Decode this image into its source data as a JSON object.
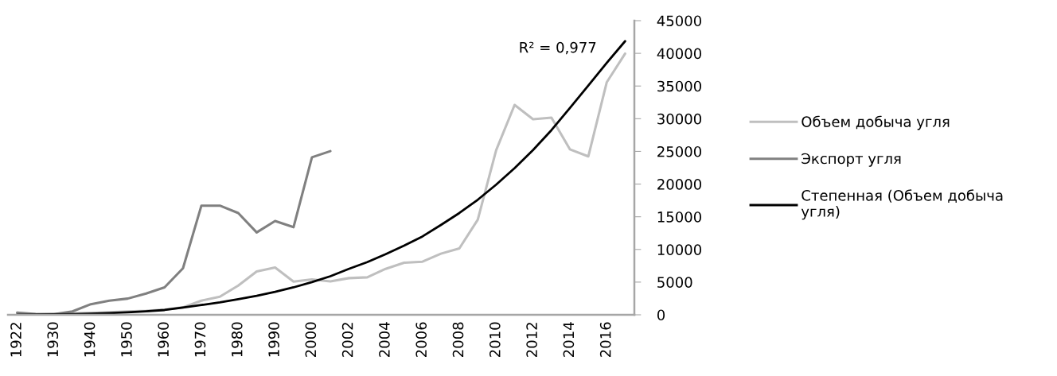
{
  "chart_data": {
    "type": "line",
    "categories": [
      "1922",
      null,
      "1930",
      null,
      "1940",
      null,
      "1950",
      null,
      "1960",
      null,
      "1970",
      null,
      "1980",
      null,
      "1990",
      null,
      "2000",
      null,
      "2002",
      null,
      "2004",
      null,
      "2006",
      null,
      "2008",
      null,
      "2010",
      null,
      "2012",
      null,
      "2014",
      null,
      "2016",
      null
    ],
    "series": [
      {
        "name": "Объем добыча угля",
        "color": "#bfbfbf",
        "values": [
          100,
          100,
          150,
          200,
          300,
          400,
          500,
          600,
          800,
          1140,
          2160,
          2760,
          4470,
          6620,
          7230,
          5080,
          5400,
          5120,
          5610,
          5730,
          7030,
          7970,
          8130,
          9350,
          10160,
          14550,
          25200,
          32110,
          29920,
          30160,
          25320,
          24230,
          35570,
          39960
        ]
      },
      {
        "name": "Экспорт угля",
        "color": "#808080",
        "values": [
          330,
          120,
          100,
          520,
          1620,
          2160,
          2480,
          3250,
          4190,
          7110,
          16700,
          16700,
          15570,
          12600,
          14350,
          13400,
          24100,
          25040,
          null,
          null,
          null,
          null,
          null,
          null,
          null,
          null,
          null,
          null,
          null,
          null,
          null,
          null,
          null,
          null
        ]
      },
      {
        "name": "Степенная (Объем добыча угля)",
        "color": "#000000",
        "values": [
          10,
          30,
          60,
          100,
          160,
          250,
          370,
          520,
          730,
          1100,
          1500,
          1900,
          2400,
          2900,
          3500,
          4200,
          5000,
          5900,
          7030,
          8050,
          9270,
          10570,
          11990,
          13740,
          15570,
          17600,
          19920,
          22440,
          25200,
          28250,
          31630,
          35080,
          38540,
          41870
        ]
      }
    ],
    "ylim": [
      0,
      45000
    ],
    "yticks": [
      0,
      5000,
      10000,
      15000,
      20000,
      25000,
      30000,
      35000,
      40000,
      45000
    ],
    "annotations": [
      "R² = 0,977"
    ],
    "legend": "right",
    "grid": false
  }
}
